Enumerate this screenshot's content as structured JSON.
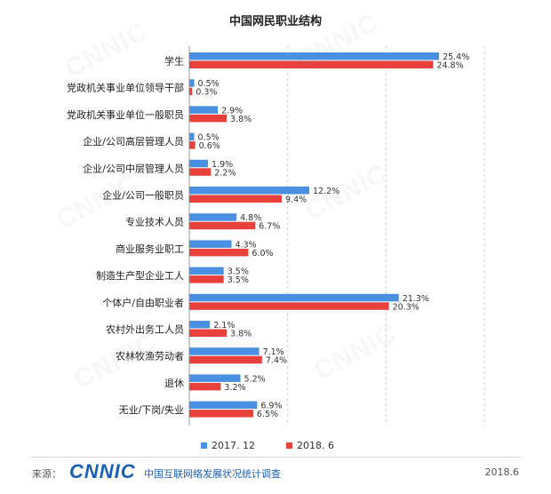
{
  "footer": {
    "source_label": "来源：",
    "logo_text": "CNNIC",
    "org_text": "中国互联网络发展状况统计调查",
    "date": "2018.6"
  },
  "colors": {
    "series_2017": "#4a90e2",
    "series_2018": "#e8413c",
    "logo": "#1b5fb5"
  },
  "chart_data": {
    "type": "bar",
    "orientation": "horizontal",
    "title": "中国网民职业结构",
    "categories": [
      "学生",
      "党政机关事业单位领导干部",
      "党政机关事业单位一般职员",
      "企业/公司高层管理人员",
      "企业/公司中层管理人员",
      "企业/公司一般职员",
      "专业技术人员",
      "商业服务业职工",
      "制造生产型企业工人",
      "个体户/自由职业者",
      "农村外出务工人员",
      "农林牧渔劳动者",
      "退休",
      "无业/下岗/失业"
    ],
    "series": [
      {
        "name": "2017. 12",
        "color": "#4a90e2",
        "values": [
          25.4,
          0.5,
          2.9,
          0.5,
          1.9,
          12.2,
          4.8,
          4.3,
          3.5,
          21.3,
          2.1,
          7.1,
          5.2,
          6.9
        ],
        "labels": [
          "25.4%",
          "0.5%",
          "2.9%",
          "0.5%",
          "1.9%",
          "12.2%",
          "4.8%",
          "4.3%",
          "3.5%",
          "21.3%",
          "2.1%",
          "7.1%",
          "5.2%",
          "6.9%"
        ]
      },
      {
        "name": "2018. 6",
        "color": "#e8413c",
        "values": [
          24.8,
          0.3,
          3.8,
          0.6,
          2.2,
          9.4,
          6.7,
          6.0,
          3.5,
          20.3,
          3.8,
          7.4,
          3.2,
          6.5
        ],
        "labels": [
          "24.8%",
          "0.3%",
          "3.8%",
          "0.6%",
          "2.2%",
          "9.4%",
          "6.7%",
          "6.0%",
          "3.5%",
          "20.3%",
          "3.8%",
          "7.4%",
          "3.2%",
          "6.5%"
        ]
      }
    ],
    "xlim": [
      0,
      30
    ],
    "grid": true,
    "legend_position": "bottom"
  }
}
